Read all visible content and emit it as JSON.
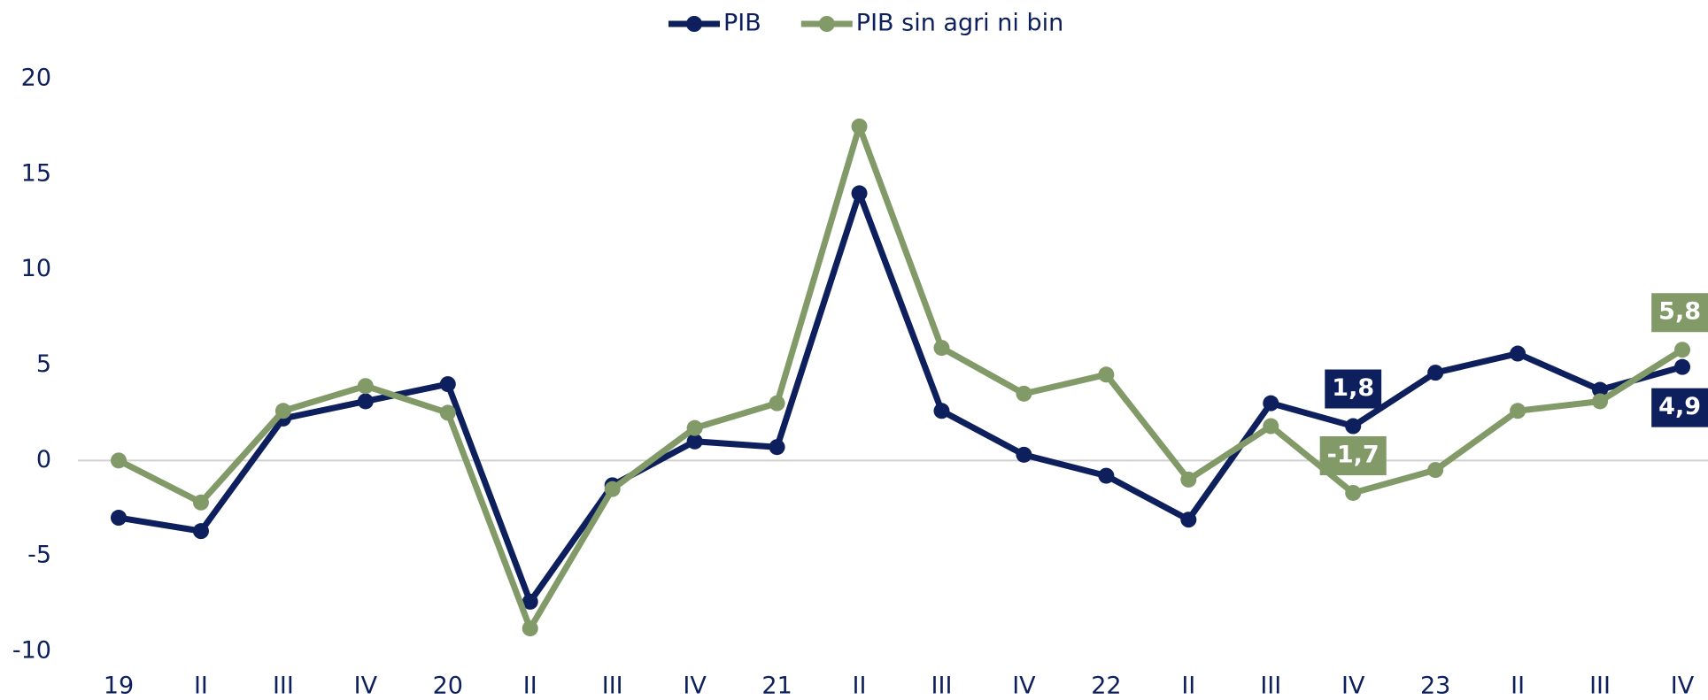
{
  "chart_data": {
    "type": "line",
    "categories": [
      "19",
      "II",
      "III",
      "IV",
      "20",
      "II",
      "III",
      "IV",
      "21",
      "II",
      "III",
      "IV",
      "22",
      "II",
      "III",
      "IV",
      "23",
      "II",
      "III",
      "IV"
    ],
    "series": [
      {
        "name": "PIB",
        "color": "#0d1f5c",
        "values": [
          -3.0,
          -3.7,
          2.2,
          3.1,
          4.0,
          -7.4,
          -1.3,
          1.0,
          0.7,
          14.0,
          2.6,
          0.3,
          -0.8,
          -3.1,
          3.0,
          1.8,
          4.6,
          5.6,
          3.7,
          4.9
        ],
        "value_labels": [
          null,
          null,
          null,
          null,
          null,
          null,
          null,
          null,
          null,
          null,
          null,
          null,
          null,
          null,
          null,
          "1,8",
          null,
          null,
          null,
          "4,9"
        ]
      },
      {
        "name": "PIB sin agri ni bin",
        "color": "#829a68",
        "values": [
          0.0,
          -2.2,
          2.6,
          3.9,
          2.5,
          -8.8,
          -1.5,
          1.7,
          3.0,
          17.5,
          5.9,
          3.5,
          4.5,
          -1.0,
          1.8,
          -1.7,
          -0.5,
          2.6,
          3.1,
          5.8
        ],
        "value_labels": [
          null,
          null,
          null,
          null,
          null,
          null,
          null,
          null,
          null,
          null,
          null,
          null,
          null,
          null,
          null,
          "-1,7",
          null,
          null,
          null,
          "5,8"
        ]
      }
    ],
    "ylim": [
      -10,
      20
    ],
    "yticks": [
      -10,
      -5,
      0,
      5,
      10,
      15,
      20
    ],
    "grid": false,
    "legend": "top"
  }
}
